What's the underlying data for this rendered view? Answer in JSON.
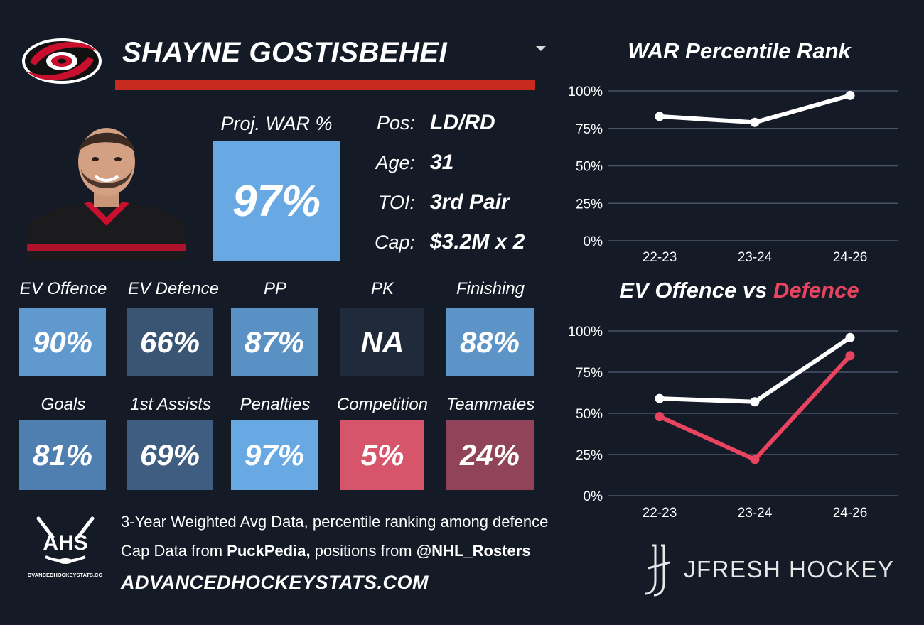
{
  "header": {
    "player_name": "SHAYNE GOSTISBEHEI",
    "dropdown_icon": "caret-down-icon",
    "team_logo_icon": "hurricanes-logo-icon"
  },
  "headshot": {
    "icon": "player-headshot-icon"
  },
  "projection": {
    "label": "Proj. WAR %",
    "value": "97%",
    "percent": 97
  },
  "info": [
    {
      "label": "Pos:",
      "value": "LD/RD"
    },
    {
      "label": "Age:",
      "value": "31"
    },
    {
      "label": "TOI:",
      "value": "3rd Pair"
    },
    {
      "label": "Cap:",
      "value": "$3.2M x 2"
    }
  ],
  "tiles_row1": [
    {
      "label": "EV Offence",
      "value": "90%",
      "percent": 90
    },
    {
      "label": "EV Defence",
      "value": "66%",
      "percent": 66
    },
    {
      "label": "PP",
      "value": "87%",
      "percent": 87
    },
    {
      "label": "PK",
      "value": "NA",
      "percent": null
    },
    {
      "label": "Finishing",
      "value": "88%",
      "percent": 88
    }
  ],
  "tiles_row2": [
    {
      "label": "Goals",
      "value": "81%",
      "percent": 81
    },
    {
      "label": "1st Assists",
      "value": "69%",
      "percent": 69
    },
    {
      "label": "Penalties",
      "value": "97%",
      "percent": 97
    },
    {
      "label": "Competition",
      "value": "5%",
      "percent": 5
    },
    {
      "label": "Teammates",
      "value": "24%",
      "percent": 24
    }
  ],
  "colors": {
    "background": "#141b27",
    "accent_red": "#c82a1f",
    "defence_line": "#e8435f",
    "offence_line": "#ffffff",
    "grid": "#4a5468"
  },
  "footer": {
    "line1": "3-Year Weighted Avg Data, percentile ranking among defence",
    "line2_prefix": "Cap Data from ",
    "line2_bold1": "PuckPedia,",
    "line2_mid": " positions from ",
    "line2_bold2": "@NHL_Rosters",
    "site": "ADVANCEDHOCKEYSTATS.COM",
    "ahs_logo_text": "AHS",
    "ahs_logo_sub": "ADVANCEDHOCKEYSTATS.COM",
    "brand": "JFRESH HOCKEY"
  },
  "chart_titles": {
    "chart1": "WAR Percentile Rank",
    "chart2_part1": "EV Offence vs ",
    "chart2_part2": "Defence"
  },
  "chart_data": [
    {
      "type": "line",
      "title": "WAR Percentile Rank",
      "categories": [
        "22-23",
        "23-24",
        "24-26"
      ],
      "yticks": [
        "0%",
        "25%",
        "50%",
        "75%",
        "100%"
      ],
      "ylim": [
        0,
        100
      ],
      "grid": true,
      "series": [
        {
          "values": [
            83,
            79,
            97
          ],
          "color": "#ffffff"
        }
      ]
    },
    {
      "type": "line",
      "title": "EV Offence vs Defence",
      "categories": [
        "22-23",
        "23-24",
        "24-26"
      ],
      "yticks": [
        "0%",
        "25%",
        "50%",
        "75%",
        "100%"
      ],
      "ylim": [
        0,
        100
      ],
      "grid": true,
      "series": [
        {
          "values": [
            59,
            57,
            96
          ],
          "color": "#ffffff"
        },
        {
          "values": [
            48,
            22,
            85
          ],
          "color": "#e8435f"
        }
      ]
    }
  ]
}
